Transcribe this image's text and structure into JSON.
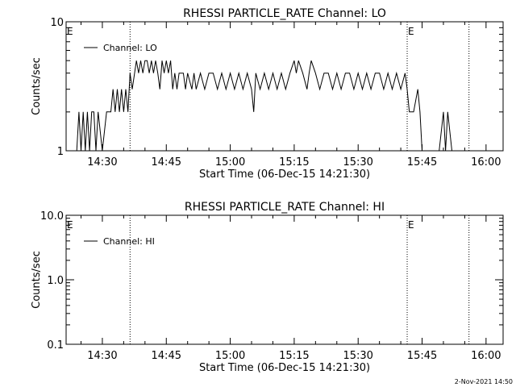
{
  "footer_timestamp": "2-Nov-2021 14:50",
  "chart_data": [
    {
      "type": "line",
      "title": "RHESSI PARTICLE_RATE Channel: LO",
      "xlabel": "Start Time (06-Dec-15 14:21:30)",
      "ylabel": "Counts/sec",
      "yscale": "log",
      "ylim": [
        1,
        10
      ],
      "yticks": [
        1,
        10
      ],
      "ytick_labels": [
        "1",
        "10"
      ],
      "xlim_minutes": [
        "14:21:30",
        "16:04:00"
      ],
      "xticks": [
        "14:30",
        "14:45",
        "15:00",
        "15:15",
        "15:30",
        "15:45",
        "16:00"
      ],
      "legend": {
        "position": "top-left",
        "label": "Channel: LO"
      },
      "markers": [
        {
          "time": "14:21:30",
          "label": "E"
        },
        {
          "time": "14:36:30",
          "label": ""
        },
        {
          "time": "15:41:30",
          "label": "E"
        },
        {
          "time": "15:56:00",
          "label": ""
        }
      ],
      "series": [
        {
          "name": "Channel: LO",
          "time": [
            "14:24:00",
            "14:24:30",
            "14:25:00",
            "14:25:30",
            "14:26:00",
            "14:26:30",
            "14:27:00",
            "14:27:30",
            "14:28:00",
            "14:28:30",
            "14:29:00",
            "14:30:00",
            "14:31:00",
            "14:32:00",
            "14:32:30",
            "14:33:00",
            "14:33:30",
            "14:34:00",
            "14:34:30",
            "14:35:00",
            "14:35:30",
            "14:36:00",
            "14:36:30",
            "14:37:00",
            "14:38:00",
            "14:38:30",
            "14:39:00",
            "14:39:30",
            "14:40:00",
            "14:40:30",
            "14:41:00",
            "14:41:30",
            "14:42:00",
            "14:42:30",
            "14:43:00",
            "14:43:30",
            "14:44:00",
            "14:44:30",
            "14:45:00",
            "14:45:30",
            "14:46:00",
            "14:46:30",
            "14:47:00",
            "14:47:30",
            "14:48:00",
            "14:49:00",
            "14:49:30",
            "14:50:00",
            "14:51:00",
            "14:51:30",
            "14:52:00",
            "14:53:00",
            "14:54:00",
            "14:55:00",
            "14:56:00",
            "14:57:00",
            "14:58:00",
            "14:59:00",
            "15:00:00",
            "15:01:00",
            "15:02:00",
            "15:03:00",
            "15:04:00",
            "15:05:00",
            "15:05:30",
            "15:06:00",
            "15:07:00",
            "15:08:00",
            "15:09:00",
            "15:10:00",
            "15:11:00",
            "15:12:00",
            "15:13:00",
            "15:14:00",
            "15:15:00",
            "15:15:30",
            "15:16:00",
            "15:17:00",
            "15:18:00",
            "15:18:30",
            "15:19:00",
            "15:20:00",
            "15:21:00",
            "15:22:00",
            "15:23:00",
            "15:24:00",
            "15:25:00",
            "15:26:00",
            "15:27:00",
            "15:28:00",
            "15:29:00",
            "15:30:00",
            "15:31:00",
            "15:32:00",
            "15:33:00",
            "15:34:00",
            "15:35:00",
            "15:36:00",
            "15:37:00",
            "15:38:00",
            "15:39:00",
            "15:40:00",
            "15:41:00",
            "15:41:30",
            "15:42:00",
            "15:43:00",
            "15:44:00",
            "15:44:30",
            "15:45:00",
            "15:46:00",
            "15:47:00",
            "15:47:30",
            "15:48:00",
            "15:49:00",
            "15:50:00",
            "15:50:30",
            "15:51:00",
            "15:52:00",
            "15:52:30",
            "15:53:00"
          ],
          "values": [
            1,
            2,
            1,
            2,
            1,
            2,
            1,
            2,
            2,
            1,
            2,
            1,
            2,
            2,
            3,
            2,
            3,
            2,
            3,
            2,
            3,
            2,
            4,
            3,
            5,
            4,
            5,
            4,
            5,
            5,
            4,
            5,
            4,
            5,
            4,
            3,
            5,
            4,
            5,
            4,
            5,
            3,
            4,
            3,
            4,
            4,
            3,
            4,
            3,
            4,
            3,
            4,
            3,
            4,
            4,
            3,
            4,
            3,
            4,
            3,
            4,
            3,
            4,
            3,
            2,
            4,
            3,
            4,
            3,
            4,
            3,
            4,
            3,
            4,
            5,
            4,
            5,
            4,
            3,
            4,
            5,
            4,
            3,
            4,
            4,
            3,
            4,
            3,
            4,
            4,
            3,
            4,
            3,
            4,
            3,
            4,
            4,
            3,
            4,
            3,
            4,
            3,
            4,
            3,
            2,
            2,
            3,
            2,
            1,
            1,
            1,
            1,
            1,
            1,
            2,
            1,
            2,
            1,
            1,
            1
          ]
        }
      ]
    },
    {
      "type": "line",
      "title": "RHESSI PARTICLE_RATE Channel: HI",
      "xlabel": "Start Time (06-Dec-15 14:21:30)",
      "ylabel": "Counts/sec",
      "yscale": "log",
      "ylim": [
        0.1,
        10
      ],
      "yticks": [
        0.1,
        1,
        10
      ],
      "ytick_labels": [
        "0.1",
        "1.0",
        "10.0"
      ],
      "xlim_minutes": [
        "14:21:30",
        "16:04:00"
      ],
      "xticks": [
        "14:30",
        "14:45",
        "15:00",
        "15:15",
        "15:30",
        "15:45",
        "16:00"
      ],
      "legend": {
        "position": "top-left",
        "label": "Channel: HI"
      },
      "markers": [
        {
          "time": "14:21:30",
          "label": "E"
        },
        {
          "time": "14:36:30",
          "label": ""
        },
        {
          "time": "15:41:30",
          "label": "E"
        },
        {
          "time": "15:56:00",
          "label": ""
        }
      ],
      "series": [
        {
          "name": "Channel: HI",
          "time": [],
          "values": []
        }
      ]
    }
  ]
}
